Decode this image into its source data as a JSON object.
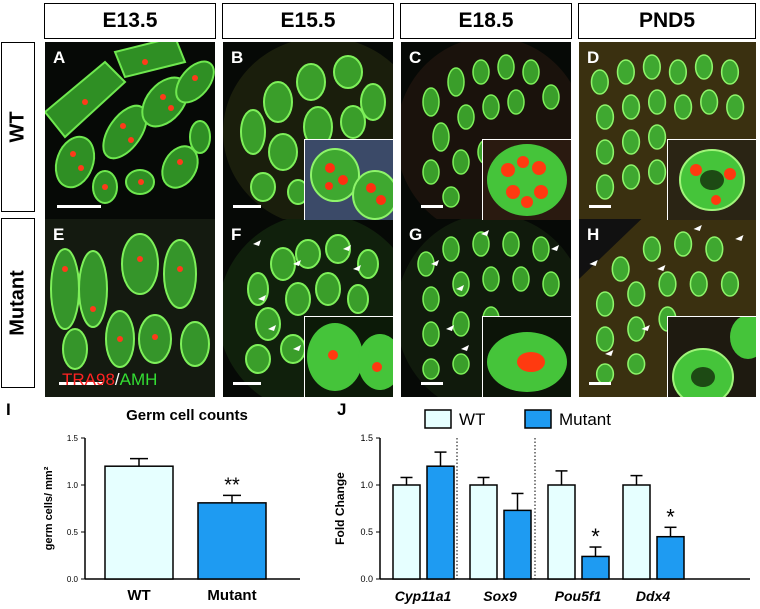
{
  "header": {
    "cols": [
      "E13.5",
      "E15.5",
      "E18.5",
      "PND5"
    ],
    "rows": [
      "WT",
      "Mutant"
    ]
  },
  "panels": [
    "A",
    "B",
    "C",
    "D",
    "E",
    "F",
    "G",
    "H"
  ],
  "stain": {
    "marker1": "TRA98",
    "sep": "/",
    "marker2": "AMH",
    "color1": "#ff2222",
    "color2": "#33dd33"
  },
  "chart_data": [
    {
      "type": "bar",
      "letter": "I",
      "title": "Germ cell counts",
      "ylabel": "germ cells/ mm²",
      "xlabel": "",
      "categories": [
        "WT",
        "Mutant"
      ],
      "values": [
        1.2,
        0.81
      ],
      "errors": [
        0.08,
        0.08
      ],
      "ylim": [
        0,
        1.5
      ],
      "yticks": [
        "0.0",
        "0.5",
        "1.0",
        "1.5"
      ],
      "annotations": [
        "",
        "**"
      ],
      "colors": [
        "#e6ffff",
        "#1e9bf2"
      ]
    },
    {
      "type": "bar",
      "letter": "J",
      "ylabel": "Fold Change",
      "xlabel": "",
      "categories": [
        "Cyp11a1",
        "Sox9",
        "Pou5f1",
        "Ddx4"
      ],
      "series": [
        {
          "name": "WT",
          "values": [
            1.0,
            1.0,
            1.0,
            1.0
          ],
          "errors": [
            0.08,
            0.08,
            0.15,
            0.1
          ]
        },
        {
          "name": "Mutant",
          "values": [
            1.2,
            0.73,
            0.24,
            0.45
          ],
          "errors": [
            0.15,
            0.18,
            0.1,
            0.1
          ]
        }
      ],
      "annotations": [
        "",
        "",
        "*",
        "*"
      ],
      "ylim": [
        0,
        1.5
      ],
      "yticks": [
        "0.0",
        "0.5",
        "1.0",
        "1.5"
      ],
      "colors": [
        "#e6ffff",
        "#1e9bf2"
      ],
      "legend_position": "top"
    }
  ]
}
